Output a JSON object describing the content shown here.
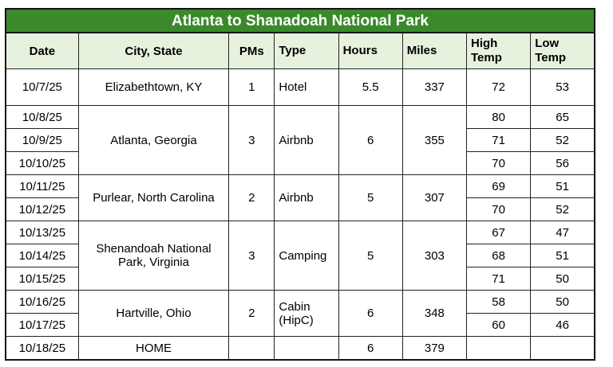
{
  "title": "Atlanta to Shanadoah National Park",
  "headers": {
    "date": "Date",
    "city": "City, State",
    "pms": "PMs",
    "type": "Type",
    "hours": "Hours",
    "miles": "Miles",
    "high1": "High",
    "high2": "Temp",
    "low1": "Low",
    "low2": "Temp"
  },
  "stops": [
    {
      "city": "Elizabethtown, KY",
      "pms": "1",
      "type": "Hotel",
      "hours": "5.5",
      "miles": "337",
      "days": [
        {
          "date": "10/7/25",
          "high": "72",
          "low": "53"
        }
      ]
    },
    {
      "city": "Atlanta, Georgia",
      "pms": "3",
      "type": "Airbnb",
      "hours": "6",
      "miles": "355",
      "days": [
        {
          "date": "10/8/25",
          "high": "80",
          "low": "65"
        },
        {
          "date": "10/9/25",
          "high": "71",
          "low": "52"
        },
        {
          "date": "10/10/25",
          "high": "70",
          "low": "56"
        }
      ]
    },
    {
      "city": "Purlear, North Carolina",
      "pms": "2",
      "type": "Airbnb",
      "hours": "5",
      "miles": "307",
      "days": [
        {
          "date": "10/11/25",
          "high": "69",
          "low": "51"
        },
        {
          "date": "10/12/25",
          "high": "70",
          "low": "52"
        }
      ]
    },
    {
      "city_line1": "Shenandoah National",
      "city_line2": "Park, Virginia",
      "pms": "3",
      "type": "Camping",
      "hours": "5",
      "miles": "303",
      "days": [
        {
          "date": "10/13/25",
          "high": "67",
          "low": "47"
        },
        {
          "date": "10/14/25",
          "high": "68",
          "low": "51"
        },
        {
          "date": "10/15/25",
          "high": "71",
          "low": "50"
        }
      ]
    },
    {
      "city": "Hartville, Ohio",
      "pms": "2",
      "type_line1": "Cabin",
      "type_line2": "(HipC)",
      "hours": "6",
      "miles": "348",
      "days": [
        {
          "date": "10/16/25",
          "high": "58",
          "low": "50"
        },
        {
          "date": "10/17/25",
          "high": "60",
          "low": "46"
        }
      ]
    },
    {
      "city": "HOME",
      "pms": "",
      "type": "",
      "hours": "6",
      "miles": "379",
      "days": [
        {
          "date": "10/18/25",
          "high": "",
          "low": ""
        }
      ]
    }
  ]
}
